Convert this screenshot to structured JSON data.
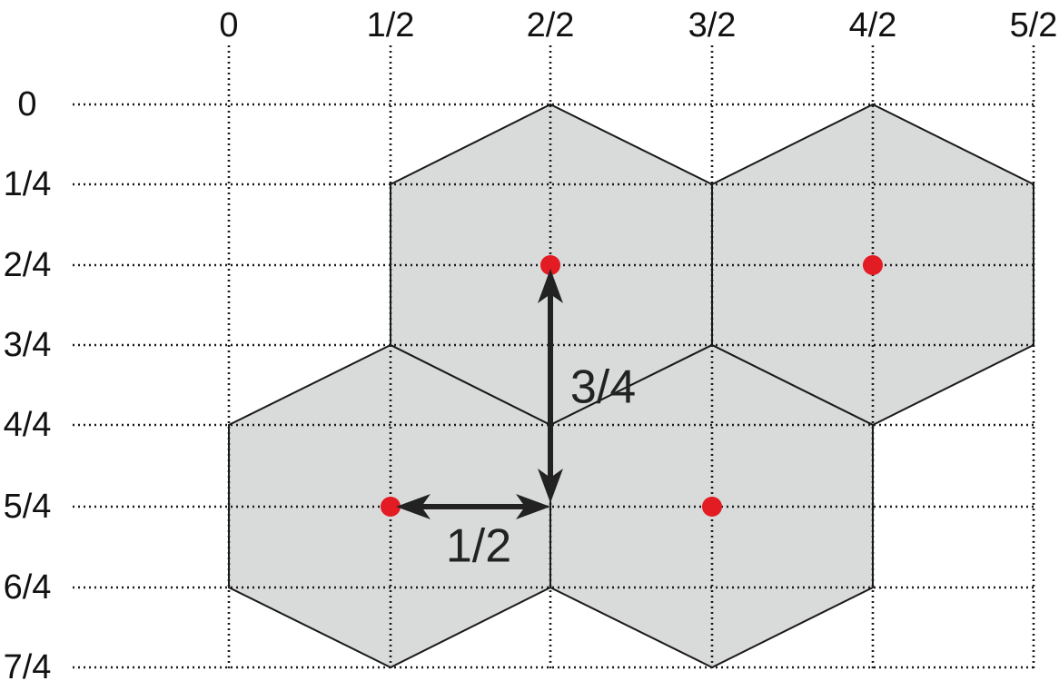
{
  "x_axis_labels": [
    "0",
    "1/2",
    "2/2",
    "3/2",
    "4/2",
    "5/2"
  ],
  "y_axis_labels": [
    "0",
    "1/4",
    "2/4",
    "3/4",
    "4/4",
    "5/4",
    "6/4",
    "7/4"
  ],
  "hexagons": [
    {
      "center": [
        "2/2",
        "2/4"
      ],
      "has_center_dot": true
    },
    {
      "center": [
        "4/2",
        "2/4"
      ],
      "has_center_dot": true
    },
    {
      "center": [
        "1/2",
        "5/4"
      ],
      "has_center_dot": true
    },
    {
      "center": [
        "3/2",
        "5/4"
      ],
      "has_center_dot": true
    }
  ],
  "dimensions": {
    "vertical": {
      "label": "3/4",
      "from": [
        "2/2",
        "2/4"
      ],
      "to": [
        "2/2",
        "5/4"
      ]
    },
    "horizontal": {
      "label": "1/2",
      "from": [
        "1/2",
        "5/4"
      ],
      "to": [
        "2/2",
        "5/4"
      ]
    }
  },
  "colors": {
    "hexagon_fill": "#d9dbdb",
    "hexagon_stroke": "#1a1a1a",
    "center_dot": "#e31b23",
    "arrow": "#222222",
    "grid": "#1a1a1a"
  }
}
